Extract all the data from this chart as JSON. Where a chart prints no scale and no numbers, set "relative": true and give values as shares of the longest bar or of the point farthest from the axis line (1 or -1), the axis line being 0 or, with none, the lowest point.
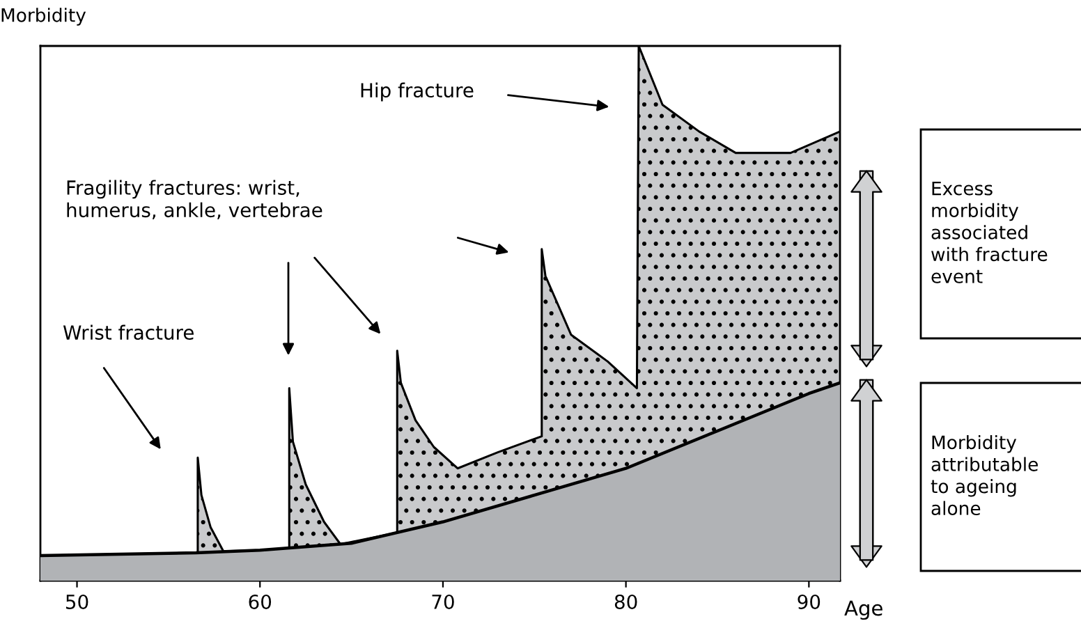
{
  "chart_data": {
    "type": "area",
    "relative": true,
    "xlabel": "Age",
    "ylabel": "Morbidity",
    "xlim": [
      48,
      91.7
    ],
    "xticks": [
      50,
      60,
      70,
      80,
      90
    ],
    "grid": false,
    "legend": false,
    "series": [
      {
        "color": "#c9cacc",
        "x": [
          48,
          56.6,
          56.6,
          56.8,
          57.3,
          58.0,
          61.6,
          61.6,
          61.8,
          62.5,
          63.5,
          64.4,
          67.5,
          67.5,
          67.7,
          68.5,
          69.5,
          70.8,
          73,
          75.4,
          75.4,
          75.6,
          77,
          79,
          80.6,
          80.7,
          82,
          84,
          86,
          87.5,
          89,
          91.7
        ],
        "values": [
          0.047,
          0.052,
          0.23,
          0.16,
          0.1,
          0.055,
          0.058,
          0.36,
          0.26,
          0.18,
          0.11,
          0.068,
          0.09,
          0.43,
          0.37,
          0.3,
          0.25,
          0.21,
          0.24,
          0.27,
          0.62,
          0.57,
          0.46,
          0.41,
          0.36,
          1.0,
          0.89,
          0.84,
          0.8,
          0.8,
          0.8,
          0.84
        ]
      },
      {
        "color": "#b1b3b6",
        "x": [
          48,
          56.5,
          60,
          65,
          70,
          75,
          80,
          85,
          90,
          91.7
        ],
        "values": [
          0.047,
          0.052,
          0.057,
          0.07,
          0.11,
          0.16,
          0.21,
          0.28,
          0.35,
          0.37
        ]
      }
    ],
    "annotations": [
      "Hip fracture",
      "Fragility fractures: wrist,\nhumerus, ankle, vertebrae",
      "Wrist fracture",
      "Excess\nmorbidity\nassociated\nwith fracture\nevent",
      "Morbidity\nattributable\nto ageing\nalone"
    ]
  }
}
